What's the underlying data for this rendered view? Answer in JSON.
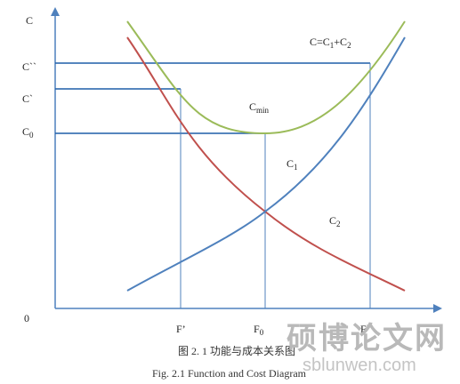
{
  "colors": {
    "axis": "#4f81bd",
    "guide": "#1f5fa8",
    "total_curve": "#9bbb59",
    "c1_curve": "#4f81bd",
    "c2_curve": "#c0504d",
    "watermark": "#bdbdbd"
  },
  "axes": {
    "y_title": "C",
    "origin": "0",
    "y_ticks": {
      "c_double_prime": "C``",
      "c_prime": "C`",
      "c0": "C",
      "c0_sub": "0"
    },
    "x_ticks": {
      "f_prime": "F’",
      "f0": "F",
      "f0_sub": "0",
      "f_double_prime": "F``"
    }
  },
  "curve_labels": {
    "total": {
      "pre": "C=C",
      "sub1": "1",
      "mid": "+C",
      "sub2": "2"
    },
    "cmin": {
      "main": "C",
      "sub": "min"
    },
    "c1": {
      "main": "C",
      "sub": "1"
    },
    "c2": {
      "main": "C",
      "sub": "2"
    }
  },
  "caption": {
    "cn": "图 2. 1  功能与成本关系图",
    "en": "Fig. 2.1 Function and Cost Diagram"
  },
  "watermark": {
    "cn": "硕博论文网",
    "url": "sblunwen.com"
  }
}
